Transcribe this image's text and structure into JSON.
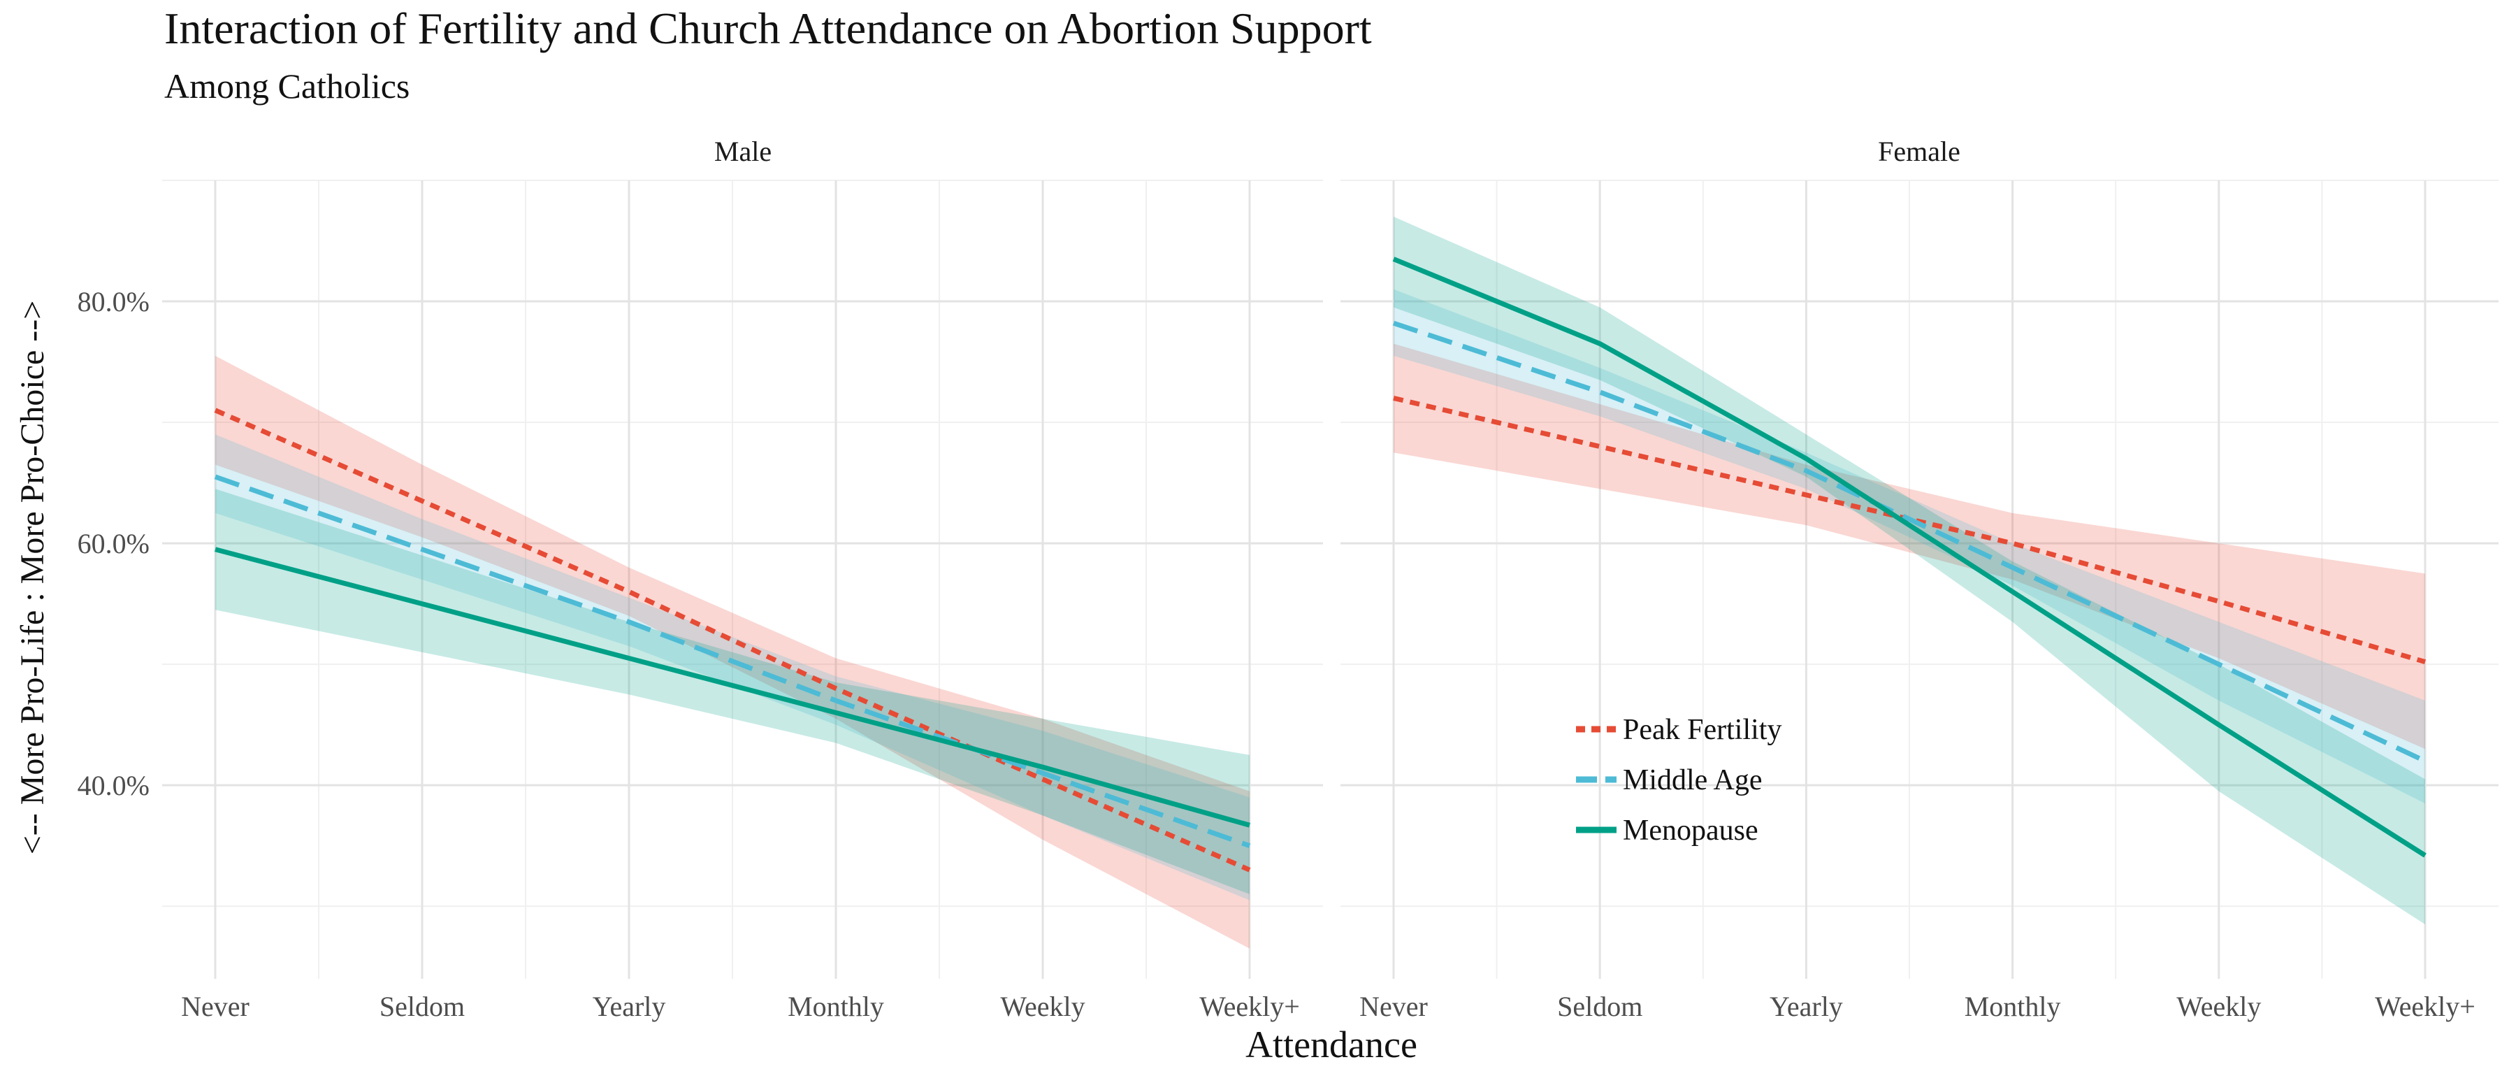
{
  "chart_data": {
    "type": "line",
    "title": "Interaction of Fertility and Church Attendance on Abortion Support",
    "subtitle": "Among Catholics",
    "xlabel": "Attendance",
    "ylabel": "<-- More Pro-Life : More Pro-Choice -->",
    "categories": [
      "Never",
      "Seldom",
      "Yearly",
      "Monthly",
      "Weekly",
      "Weekly+"
    ],
    "ylim": [
      0.24,
      0.9
    ],
    "yticks": [
      0.4,
      0.6,
      0.8
    ],
    "ytick_labels": [
      "40.0%",
      "60.0%",
      "80.0%"
    ],
    "grid": true,
    "legend_position": "inside-bottom-left of Female panel",
    "panels": [
      {
        "name": "Male",
        "series": [
          {
            "name": "Peak Fertility",
            "color": "#E64B35",
            "dash": "dotted",
            "values": [
              0.71,
              0.635,
              0.56,
              0.48,
              0.405,
              0.33
            ],
            "lower": [
              0.665,
              0.605,
              0.54,
              0.455,
              0.355,
              0.265
            ],
            "upper": [
              0.755,
              0.665,
              0.58,
              0.505,
              0.455,
              0.395
            ]
          },
          {
            "name": "Middle Age",
            "color": "#4DBBD5",
            "dash": "dashed",
            "values": [
              0.655,
              0.595,
              0.535,
              0.47,
              0.41,
              0.35
            ],
            "lower": [
              0.625,
              0.57,
              0.515,
              0.45,
              0.375,
              0.305
            ],
            "upper": [
              0.69,
              0.62,
              0.555,
              0.49,
              0.445,
              0.39
            ]
          },
          {
            "name": "Menopause",
            "color": "#00A087",
            "dash": "solid",
            "values": [
              0.595,
              0.55,
              0.505,
              0.46,
              0.415,
              0.367
            ],
            "lower": [
              0.545,
              0.51,
              0.475,
              0.435,
              0.375,
              0.31
            ],
            "upper": [
              0.645,
              0.59,
              0.535,
              0.485,
              0.455,
              0.425
            ]
          }
        ]
      },
      {
        "name": "Female",
        "series": [
          {
            "name": "Peak Fertility",
            "color": "#E64B35",
            "dash": "dotted",
            "values": [
              0.72,
              0.68,
              0.64,
              0.6,
              0.552,
              0.502
            ],
            "lower": [
              0.675,
              0.645,
              0.615,
              0.57,
              0.505,
              0.43
            ],
            "upper": [
              0.765,
              0.715,
              0.665,
              0.625,
              0.6,
              0.575
            ]
          },
          {
            "name": "Middle Age",
            "color": "#4DBBD5",
            "dash": "dashed",
            "values": [
              0.782,
              0.725,
              0.66,
              0.58,
              0.5,
              0.42
            ],
            "lower": [
              0.755,
              0.705,
              0.645,
              0.565,
              0.47,
              0.385
            ],
            "upper": [
              0.81,
              0.745,
              0.675,
              0.6,
              0.535,
              0.47
            ]
          },
          {
            "name": "Menopause",
            "color": "#00A087",
            "dash": "solid",
            "values": [
              0.835,
              0.765,
              0.67,
              0.56,
              0.45,
              0.342
            ],
            "lower": [
              0.795,
              0.735,
              0.655,
              0.535,
              0.395,
              0.285
            ],
            "upper": [
              0.87,
              0.795,
              0.69,
              0.585,
              0.5,
              0.405
            ]
          }
        ]
      }
    ]
  }
}
